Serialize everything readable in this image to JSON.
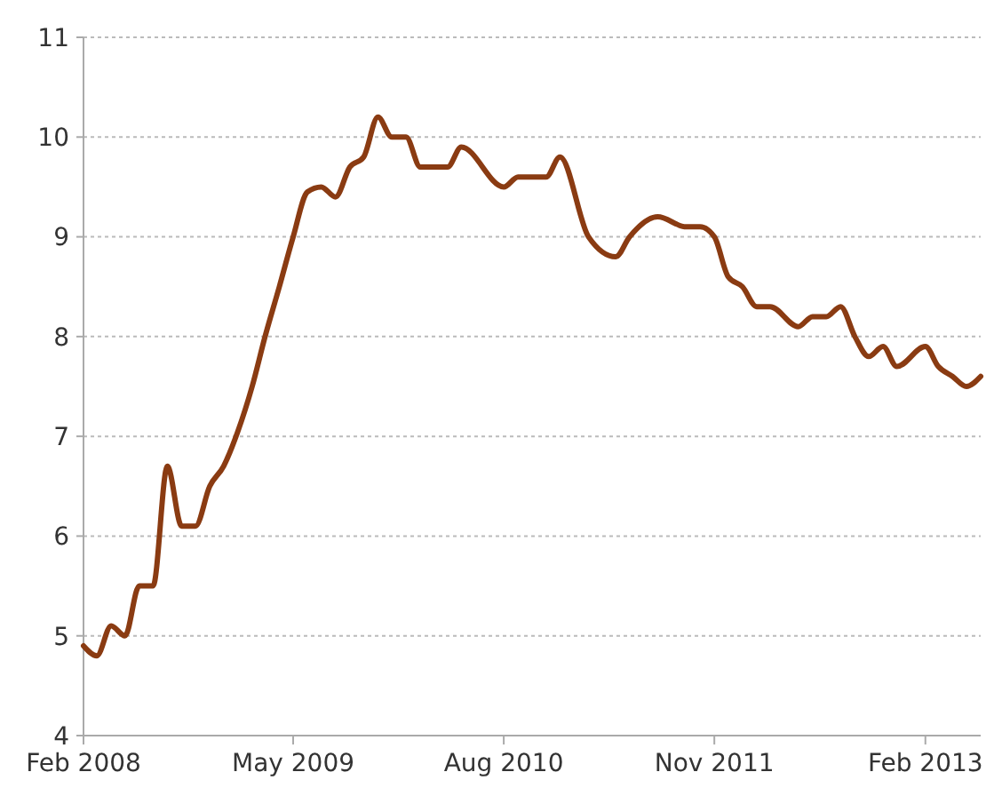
{
  "chart_data": {
    "type": "line",
    "x": [
      "2008-02",
      "2008-03",
      "2008-04",
      "2008-05",
      "2008-06",
      "2008-07",
      "2008-08",
      "2008-09",
      "2008-10",
      "2008-11",
      "2008-12",
      "2009-01",
      "2009-02",
      "2009-03",
      "2009-04",
      "2009-05",
      "2009-06",
      "2009-07",
      "2009-08",
      "2009-09",
      "2009-10",
      "2009-11",
      "2009-12",
      "2010-01",
      "2010-02",
      "2010-04",
      "2010-05",
      "2010-08",
      "2010-09",
      "2010-11",
      "2010-12",
      "2011-02",
      "2011-04",
      "2011-05",
      "2011-07",
      "2011-09",
      "2011-10",
      "2011-11",
      "2011-12",
      "2012-01",
      "2012-02",
      "2012-03",
      "2012-05",
      "2012-06",
      "2012-07",
      "2012-08",
      "2012-09",
      "2012-10",
      "2012-11",
      "2012-12",
      "2013-02",
      "2013-03",
      "2013-04",
      "2013-05",
      "2013-06"
    ],
    "series": [
      {
        "color": "#8a3b12",
        "values": [
          4.9,
          4.8,
          5.1,
          5.0,
          5.5,
          5.5,
          6.7,
          6.1,
          6.1,
          6.5,
          6.7,
          7.05,
          7.5,
          8.0,
          8.5,
          9.0,
          9.45,
          9.5,
          9.4,
          9.7,
          9.8,
          10.2,
          10.0,
          10.0,
          9.7,
          9.7,
          9.9,
          9.5,
          9.6,
          9.6,
          9.8,
          9.0,
          8.8,
          9.0,
          9.2,
          9.1,
          9.1,
          9.0,
          8.6,
          8.5,
          8.3,
          8.3,
          8.1,
          8.2,
          8.2,
          8.3,
          8.0,
          7.8,
          7.9,
          7.7,
          7.9,
          7.7,
          7.6,
          7.5,
          7.6
        ]
      }
    ],
    "xlim": [
      "2008-02",
      "2013-06"
    ],
    "xticks": [
      {
        "value": "2008-02",
        "label": "Feb 2008"
      },
      {
        "value": "2009-05",
        "label": "May 2009"
      },
      {
        "value": "2010-08",
        "label": "Aug 2010"
      },
      {
        "value": "2011-11",
        "label": "Nov 2011"
      },
      {
        "value": "2013-02",
        "label": "Feb 2013"
      }
    ],
    "ylim": [
      4,
      11
    ],
    "yticks": [
      4,
      5,
      6,
      7,
      8,
      9,
      10,
      11
    ],
    "grid": "y",
    "marker": "none",
    "line_style": "solid"
  }
}
